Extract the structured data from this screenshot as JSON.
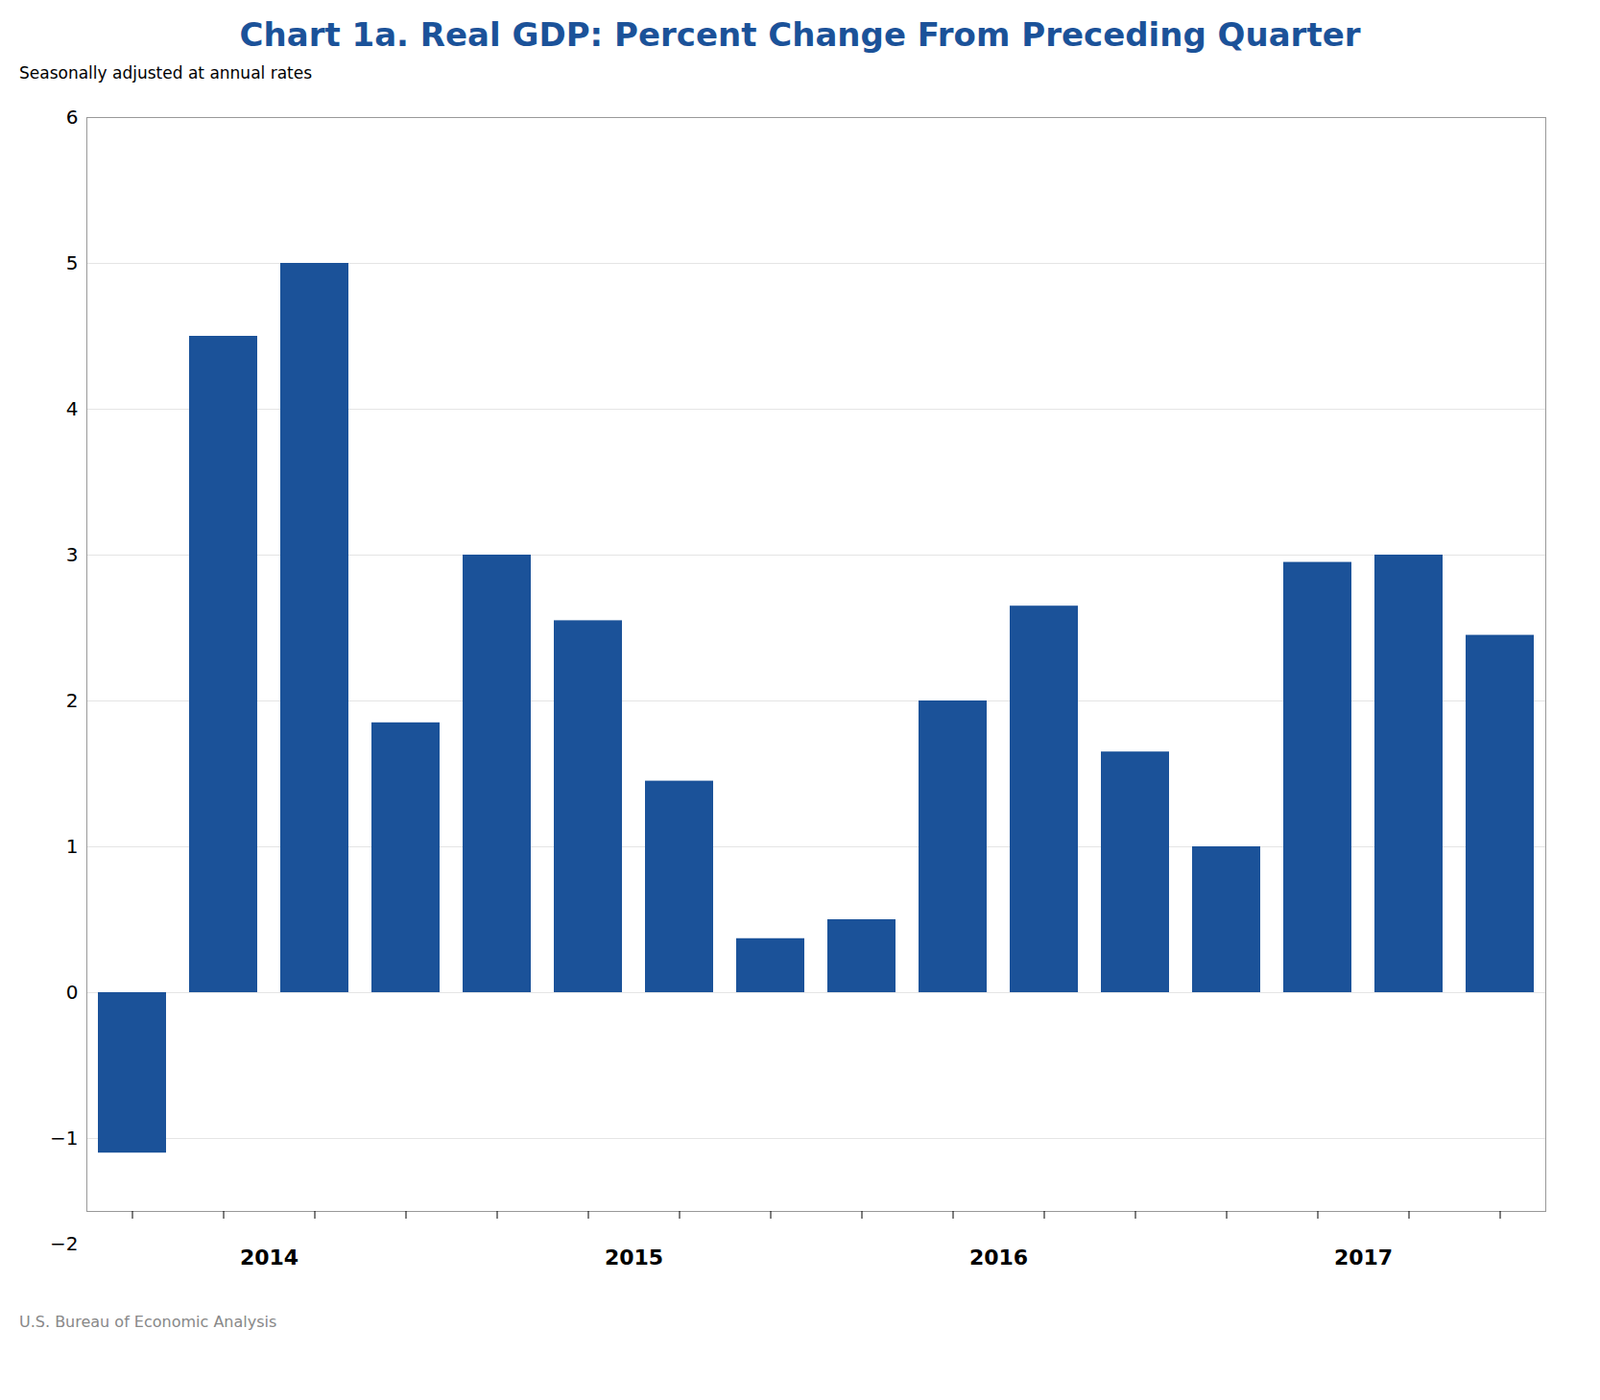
{
  "chart_data": {
    "type": "bar",
    "title": "Chart 1a. Real GDP: Percent Change From Preceding Quarter",
    "subtitle": "Seasonally adjusted at annual rates",
    "caption": "U.S. Bureau of Economic Analysis",
    "categories": [
      "2014",
      null,
      null,
      null,
      "2015",
      null,
      null,
      null,
      "2016",
      null,
      null,
      null,
      "2017",
      null,
      null,
      null
    ],
    "values": [
      -1.1,
      4.5,
      5.0,
      1.85,
      3.0,
      2.55,
      1.45,
      0.37,
      0.5,
      2.0,
      2.65,
      1.65,
      1.0,
      2.95,
      3.0,
      2.45
    ],
    "color": "#1B5299",
    "ylim": [
      -1.5,
      6.0
    ],
    "yticks": [
      {
        "value": -1,
        "label": "−1"
      },
      0,
      1,
      2,
      3,
      4,
      5,
      6
    ],
    "annotations": [
      {
        "text": "−2"
      }
    ],
    "grid": true
  }
}
